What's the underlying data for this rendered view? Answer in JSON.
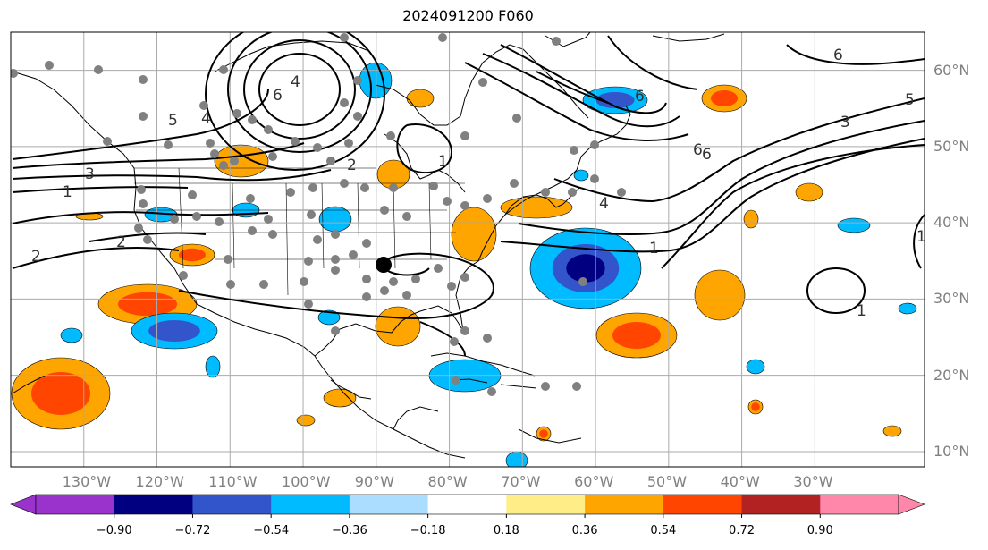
{
  "title": "2024091200 F060",
  "map": {
    "projection": "cylindrical",
    "lon_range": [
      -140,
      -15
    ],
    "lat_range": [
      8,
      65
    ],
    "lon_labels": [
      "130°W",
      "120°W",
      "110°W",
      "100°W",
      "90°W",
      "80°W",
      "70°W",
      "60°W",
      "50°W",
      "40°W",
      "30°W"
    ],
    "lat_labels": [
      "60°N",
      "50°N",
      "40°N",
      "30°N",
      "20°N",
      "10°N"
    ],
    "grid_visible": true,
    "marker": {
      "name": "large-black-dot",
      "lon": -89,
      "lat": 34.5
    }
  },
  "contour_labels": [
    "6",
    "4",
    "5",
    "4",
    "2",
    "1",
    "3",
    "1",
    "2",
    "2",
    "1",
    "4",
    "6",
    "6",
    "5",
    "3",
    "6",
    "1",
    "1",
    "6"
  ],
  "colorbar": {
    "ticks": [
      "−0.90",
      "−0.72",
      "−0.54",
      "−0.36",
      "−0.18",
      "0.18",
      "0.36",
      "0.54",
      "0.72",
      "0.90"
    ],
    "colors": [
      "#9933cc",
      "#000080",
      "#3355cc",
      "#00bbff",
      "#aaddff",
      "#ffffff",
      "#ffee88",
      "#ffa500",
      "#ff4500",
      "#b22222",
      "#ff88aa"
    ]
  }
}
